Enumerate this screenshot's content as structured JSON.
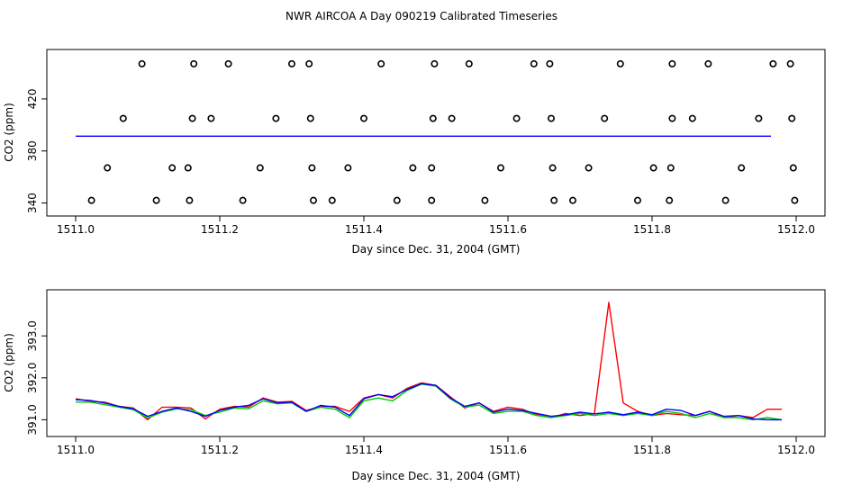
{
  "title": "NWR AIRCOA A  Day 090219  Calibrated Timeseries",
  "colors": {
    "red": "#ff0000",
    "green": "#00cc00",
    "blue": "#0000ff",
    "axis": "#000000"
  },
  "chart_data": [
    {
      "type": "scatter",
      "xlabel": "Day since Dec. 31, 2004 (GMT)",
      "ylabel": "CO2 (ppm)",
      "xlim": [
        1510.96,
        1512.04
      ],
      "ylim": [
        330,
        458
      ],
      "xticks": [
        1511.0,
        1511.2,
        1511.4,
        1511.6,
        1511.8,
        1512.0
      ],
      "xtick_labels": [
        "1511.0",
        "1511.2",
        "1511.4",
        "1511.6",
        "1511.8",
        "1512.0"
      ],
      "yticks": [
        340,
        380,
        420
      ],
      "ytick_labels": [
        "340",
        "380",
        "420"
      ],
      "series": [
        {
          "name": "calibration points",
          "color": "#000000",
          "points": [
            [
              1511.092,
              447
            ],
            [
              1511.164,
              447
            ],
            [
              1511.212,
              447
            ],
            [
              1511.3,
              447
            ],
            [
              1511.324,
              447
            ],
            [
              1511.424,
              447
            ],
            [
              1511.498,
              447
            ],
            [
              1511.546,
              447
            ],
            [
              1511.636,
              447
            ],
            [
              1511.658,
              447
            ],
            [
              1511.756,
              447
            ],
            [
              1511.828,
              447
            ],
            [
              1511.878,
              447
            ],
            [
              1511.968,
              447
            ],
            [
              1511.992,
              447
            ],
            [
              1511.066,
              405
            ],
            [
              1511.162,
              405
            ],
            [
              1511.188,
              405
            ],
            [
              1511.278,
              405
            ],
            [
              1511.326,
              405
            ],
            [
              1511.4,
              405
            ],
            [
              1511.496,
              405
            ],
            [
              1511.522,
              405
            ],
            [
              1511.612,
              405
            ],
            [
              1511.66,
              405
            ],
            [
              1511.734,
              405
            ],
            [
              1511.828,
              405
            ],
            [
              1511.856,
              405
            ],
            [
              1511.948,
              405
            ],
            [
              1511.994,
              405
            ],
            [
              1511.044,
              367
            ],
            [
              1511.134,
              367
            ],
            [
              1511.156,
              367
            ],
            [
              1511.256,
              367
            ],
            [
              1511.328,
              367
            ],
            [
              1511.378,
              367
            ],
            [
              1511.468,
              367
            ],
            [
              1511.494,
              367
            ],
            [
              1511.59,
              367
            ],
            [
              1511.662,
              367
            ],
            [
              1511.712,
              367
            ],
            [
              1511.802,
              367
            ],
            [
              1511.826,
              367
            ],
            [
              1511.924,
              367
            ],
            [
              1511.996,
              367
            ],
            [
              1511.022,
              342
            ],
            [
              1511.112,
              342
            ],
            [
              1511.158,
              342
            ],
            [
              1511.232,
              342
            ],
            [
              1511.33,
              342
            ],
            [
              1511.356,
              342
            ],
            [
              1511.446,
              342
            ],
            [
              1511.494,
              342
            ],
            [
              1511.568,
              342
            ],
            [
              1511.664,
              342
            ],
            [
              1511.69,
              342
            ],
            [
              1511.78,
              342
            ],
            [
              1511.824,
              342
            ],
            [
              1511.902,
              342
            ],
            [
              1511.998,
              342
            ]
          ]
        },
        {
          "name": "red",
          "color": "#ff0000",
          "level": 391.3
        },
        {
          "name": "green",
          "color": "#00cc00",
          "level": 391.3
        },
        {
          "name": "blue",
          "color": "#0000ff",
          "level": 391.3
        }
      ]
    },
    {
      "type": "line",
      "xlabel": "Day since Dec. 31, 2004 (GMT)",
      "ylabel": "CO2 (ppm)",
      "xlim": [
        1510.96,
        1512.04
      ],
      "ylim": [
        390.6,
        394.1
      ],
      "xticks": [
        1511.0,
        1511.2,
        1511.4,
        1511.6,
        1511.8,
        1512.0
      ],
      "xtick_labels": [
        "1511.0",
        "1511.2",
        "1511.4",
        "1511.6",
        "1511.8",
        "1512.0"
      ],
      "yticks": [
        391.0,
        392.0,
        393.0
      ],
      "ytick_labels": [
        "391.0",
        "392.0",
        "393.0"
      ],
      "x": [
        1511.0,
        1511.02,
        1511.04,
        1511.06,
        1511.08,
        1511.1,
        1511.12,
        1511.14,
        1511.16,
        1511.18,
        1511.2,
        1511.22,
        1511.24,
        1511.26,
        1511.28,
        1511.3,
        1511.32,
        1511.34,
        1511.36,
        1511.38,
        1511.4,
        1511.42,
        1511.44,
        1511.46,
        1511.48,
        1511.5,
        1511.52,
        1511.54,
        1511.56,
        1511.58,
        1511.6,
        1511.62,
        1511.64,
        1511.66,
        1511.68,
        1511.7,
        1511.72,
        1511.74,
        1511.76,
        1511.78,
        1511.8,
        1511.82,
        1511.84,
        1511.86,
        1511.88,
        1511.9,
        1511.92,
        1511.94,
        1511.96,
        1511.98
      ],
      "series": [
        {
          "name": "red",
          "color": "#ff0000",
          "values": [
            391.5,
            391.44,
            391.42,
            391.32,
            391.28,
            391.0,
            391.3,
            391.3,
            391.28,
            391.02,
            391.25,
            391.32,
            391.3,
            391.52,
            391.42,
            391.44,
            391.22,
            391.32,
            391.32,
            391.2,
            391.52,
            391.6,
            391.52,
            391.75,
            391.88,
            391.82,
            391.55,
            391.28,
            391.4,
            391.2,
            391.3,
            391.25,
            391.12,
            391.05,
            391.15,
            391.1,
            391.15,
            393.8,
            391.4,
            391.2,
            391.1,
            391.15,
            391.12,
            391.1,
            391.2,
            391.05,
            391.1,
            391.05,
            391.25,
            391.25
          ]
        },
        {
          "name": "green",
          "color": "#00cc00",
          "values": [
            391.42,
            391.42,
            391.36,
            391.3,
            391.24,
            391.04,
            391.18,
            391.26,
            391.24,
            391.1,
            391.18,
            391.28,
            391.26,
            391.45,
            391.38,
            391.4,
            391.2,
            391.3,
            391.25,
            391.05,
            391.45,
            391.52,
            391.45,
            391.7,
            391.85,
            391.8,
            391.5,
            391.3,
            391.35,
            391.15,
            391.2,
            391.2,
            391.1,
            391.05,
            391.1,
            391.15,
            391.1,
            391.15,
            391.1,
            391.15,
            391.1,
            391.2,
            391.15,
            391.05,
            391.15,
            391.05,
            391.05,
            391.0,
            391.05,
            391.0
          ]
        },
        {
          "name": "blue",
          "color": "#0000ff",
          "values": [
            391.48,
            391.46,
            391.4,
            391.32,
            391.26,
            391.08,
            391.2,
            391.28,
            391.2,
            391.08,
            391.22,
            391.3,
            391.34,
            391.5,
            391.4,
            391.42,
            391.2,
            391.34,
            391.3,
            391.1,
            391.5,
            391.6,
            391.55,
            391.72,
            391.86,
            391.82,
            391.52,
            391.32,
            391.4,
            391.18,
            391.25,
            391.22,
            391.15,
            391.08,
            391.12,
            391.18,
            391.14,
            391.18,
            391.12,
            391.18,
            391.12,
            391.25,
            391.22,
            391.1,
            391.2,
            391.08,
            391.1,
            391.02,
            391.0,
            391.0
          ]
        }
      ]
    }
  ]
}
